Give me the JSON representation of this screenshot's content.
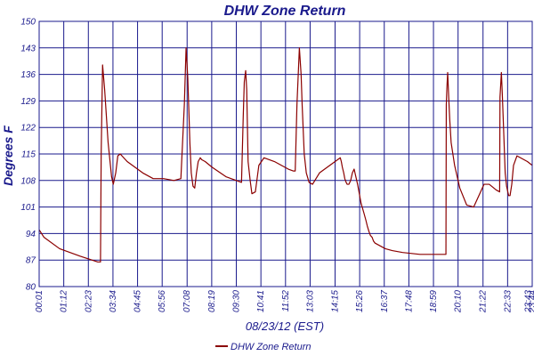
{
  "chart_data": {
    "type": "line",
    "title": "DHW Zone Return",
    "ylabel": "Degrees F",
    "xlabel": "08/23/12 (EST)",
    "ylim": [
      80,
      150
    ],
    "yticks": [
      80,
      87,
      94,
      101,
      108,
      115,
      122,
      129,
      136,
      143,
      150
    ],
    "xlim": [
      1,
      1424
    ],
    "xticks": [
      "00:01",
      "01:12",
      "02:23",
      "03:34",
      "04:45",
      "05:56",
      "07:08",
      "08:19",
      "09:30",
      "10:41",
      "11:52",
      "13:03",
      "14:15",
      "15:26",
      "16:37",
      "17:48",
      "18:59",
      "20:10",
      "21:22",
      "22:33",
      "23:44"
    ],
    "extra_xtick": "23:43",
    "grid": true,
    "legend": {
      "position": "bottom-center",
      "label": "DHW Zone Return"
    },
    "colors": {
      "line": "#8b0000",
      "grid": "#1a1a8c",
      "text": "#1a1a8c"
    },
    "series": [
      {
        "name": "DHW Zone Return",
        "x": [
          1,
          15,
          60,
          120,
          170,
          178,
          180,
          184,
          190,
          200,
          210,
          215,
          222,
          228,
          235,
          240,
          255,
          270,
          285,
          300,
          330,
          360,
          390,
          410,
          420,
          425,
          430,
          436,
          440,
          445,
          450,
          455,
          460,
          466,
          470,
          480,
          500,
          540,
          570,
          585,
          590,
          593,
          597,
          600,
          604,
          610,
          615,
          625,
          635,
          650,
          680,
          720,
          735,
          740,
          745,
          752,
          757,
          760,
          766,
          772,
          780,
          790,
          810,
          840,
          870,
          873,
          876,
          880,
          883,
          887,
          890,
          895,
          900,
          905,
          910,
          920,
          930,
          938,
          944,
          948,
          953,
          957,
          962,
          966,
          970,
          980,
          1000,
          1020,
          1050,
          1100,
          1150,
          1175,
          1176,
          1178,
          1180,
          1183,
          1186,
          1190,
          1200,
          1215,
          1235,
          1255,
          1270,
          1285,
          1300,
          1320,
          1330,
          1331,
          1335,
          1338,
          1342,
          1346,
          1350,
          1356,
          1360,
          1365,
          1370,
          1380,
          1390,
          1410,
          1424
        ],
        "y": [
          95,
          93,
          90,
          88,
          86.5,
          86.5,
          115,
          138.5,
          132,
          118,
          109,
          107,
          110,
          114.5,
          115,
          114.5,
          113,
          112,
          111,
          110,
          108.5,
          108.5,
          108,
          108.5,
          128,
          143,
          135,
          118,
          110,
          106.5,
          106,
          110,
          113,
          114,
          113.5,
          113,
          111.5,
          109,
          108,
          107.5,
          125,
          134,
          137,
          132,
          113,
          108,
          104.5,
          105,
          112,
          114,
          113,
          111,
          110.5,
          110.5,
          128,
          143,
          136,
          128,
          115,
          110,
          107.5,
          107,
          110,
          112,
          114,
          113,
          111.5,
          110,
          108.5,
          107.5,
          107,
          107,
          108,
          110,
          111,
          107,
          102,
          99.5,
          97.5,
          96,
          94.5,
          93.5,
          93,
          92,
          91.5,
          91,
          90,
          89.5,
          89,
          88.5,
          88.5,
          88.5,
          128,
          133,
          136.5,
          130,
          124,
          118,
          112,
          106,
          101.5,
          101,
          104,
          107,
          107,
          105.5,
          105,
          130,
          136.5,
          130,
          120,
          110,
          106.5,
          104,
          104,
          107,
          112,
          114.5,
          114,
          113,
          112
        ]
      }
    ]
  }
}
